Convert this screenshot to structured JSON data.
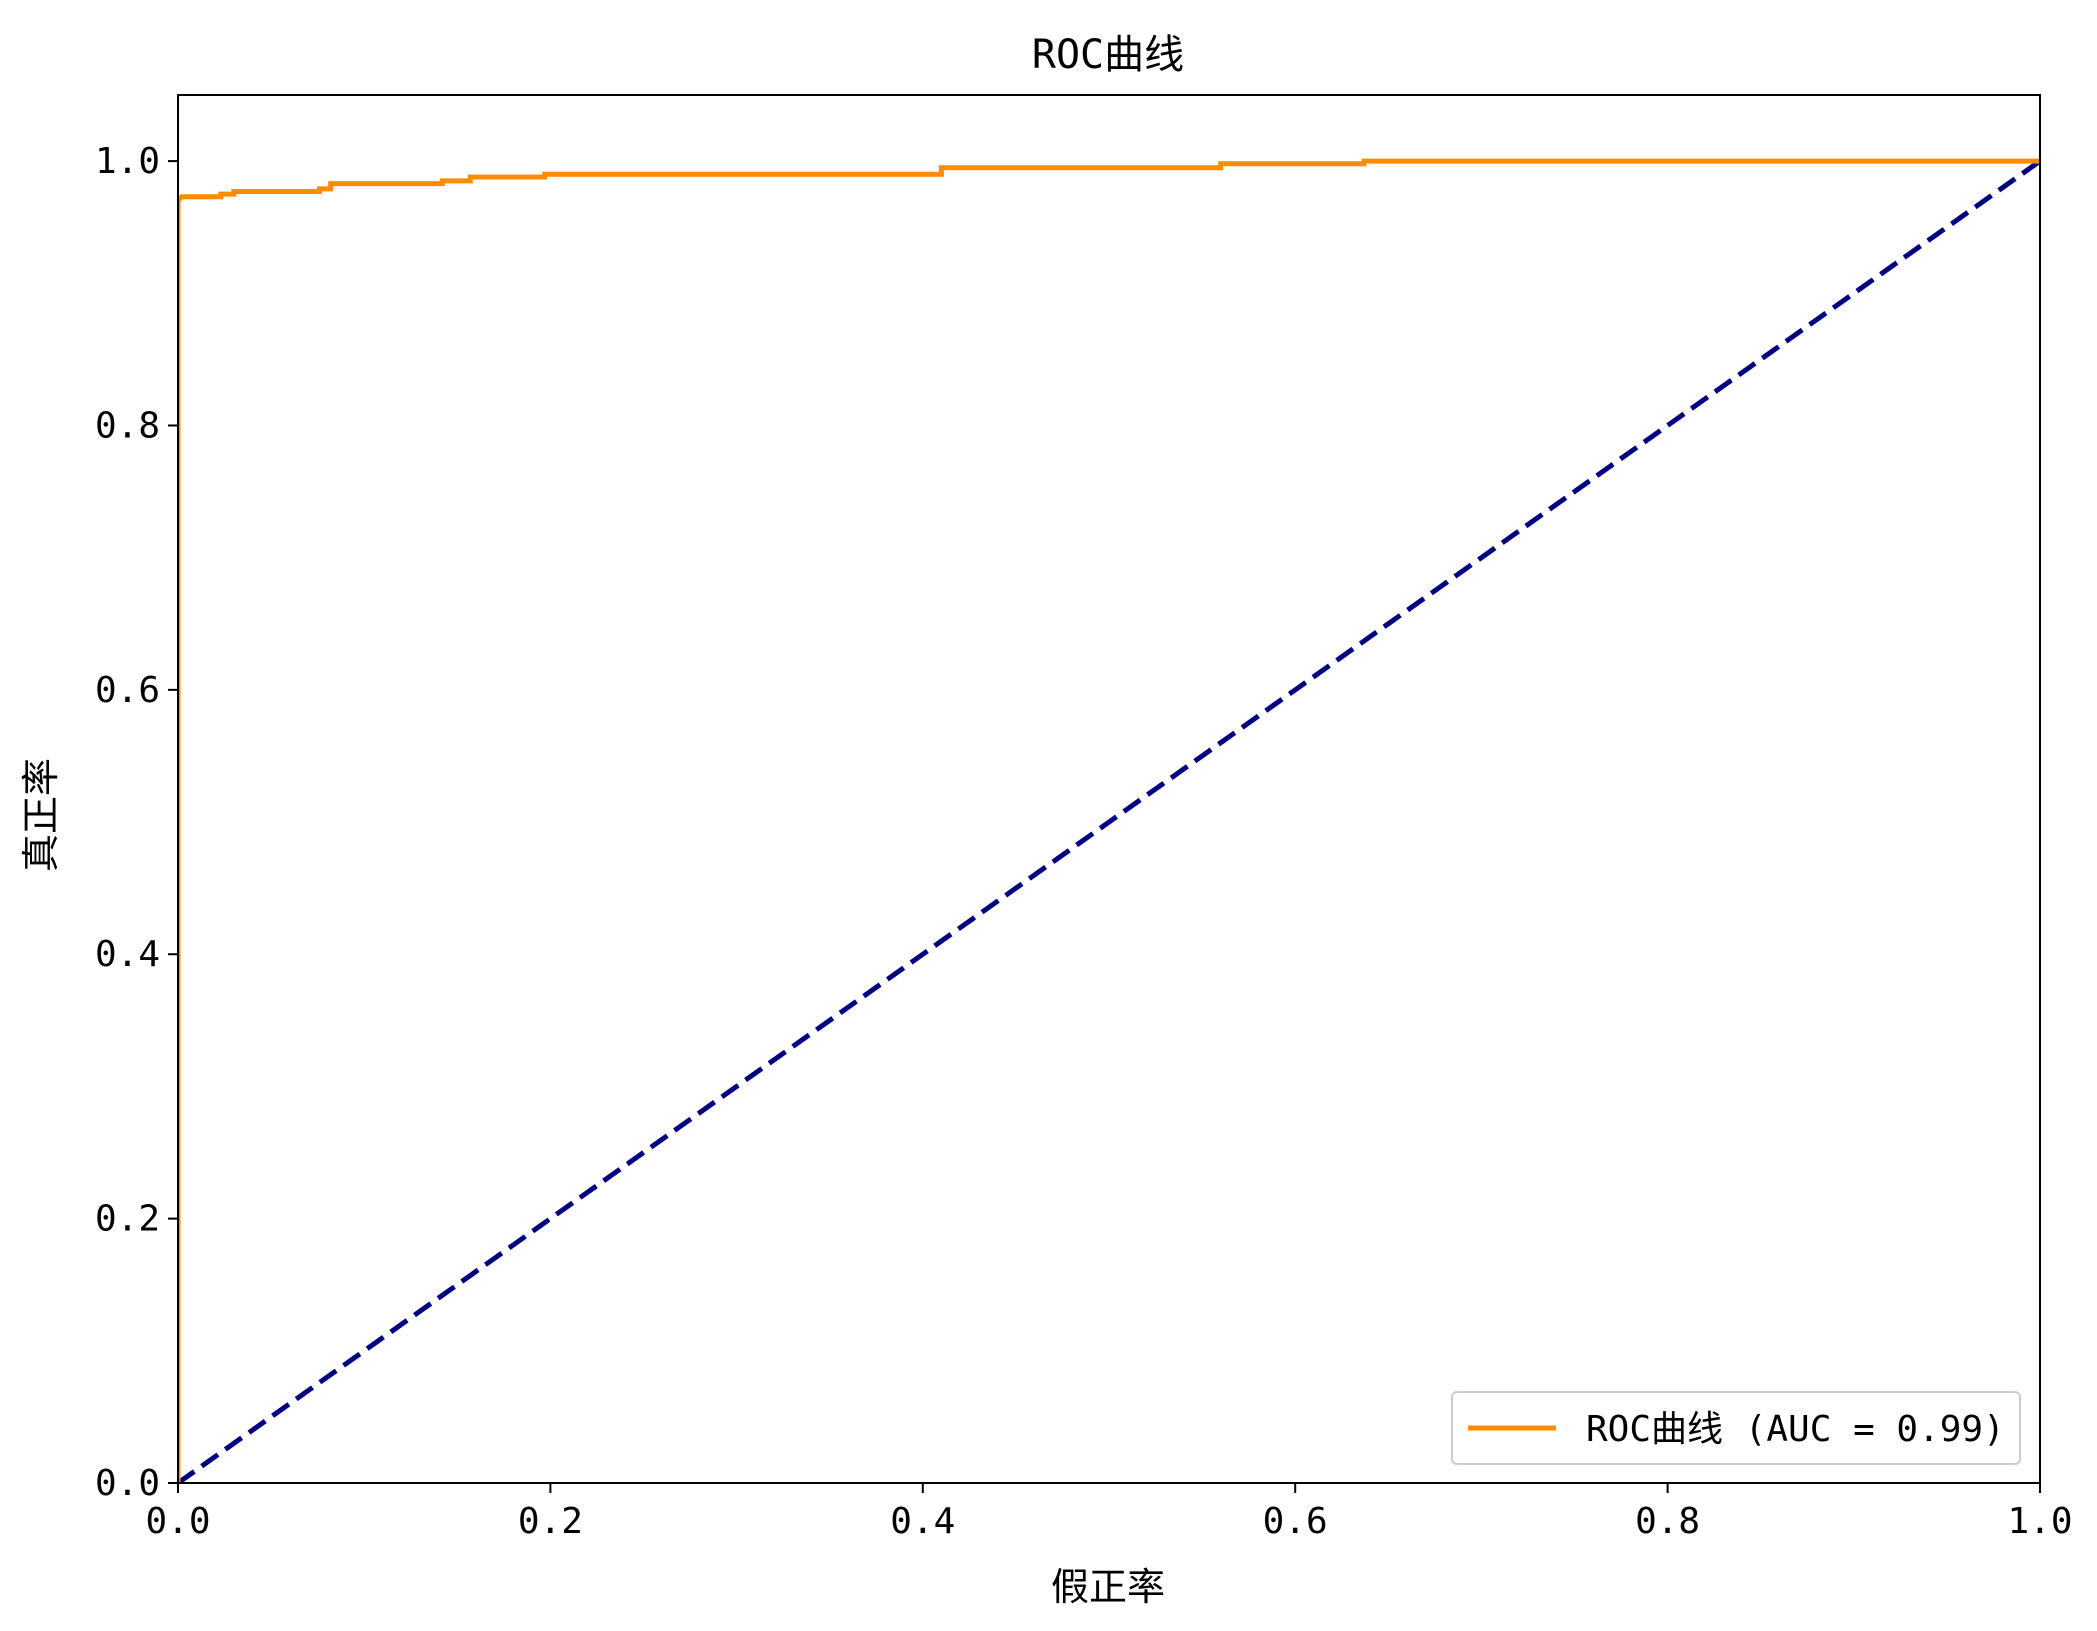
{
  "chart_data": {
    "type": "line",
    "title": "ROC曲线",
    "xlabel": "假正率",
    "ylabel": "真正率",
    "xlim": [
      0.0,
      1.0
    ],
    "ylim": [
      0.0,
      1.05
    ],
    "xticks": [
      "0.0",
      "0.2",
      "0.4",
      "0.6",
      "0.8",
      "1.0"
    ],
    "yticks": [
      "0.0",
      "0.2",
      "0.4",
      "0.6",
      "0.8",
      "1.0"
    ],
    "grid": false,
    "legend_position": "lower-right",
    "series": [
      {
        "name": "ROC曲线 (AUC = 0.99)",
        "color": "#ff8c00",
        "style": "solid",
        "points": [
          [
            0.0,
            0.0
          ],
          [
            0.0,
            0.97
          ],
          [
            0.002,
            0.973
          ],
          [
            0.023,
            0.973
          ],
          [
            0.023,
            0.975
          ],
          [
            0.03,
            0.975
          ],
          [
            0.03,
            0.977
          ],
          [
            0.076,
            0.977
          ],
          [
            0.076,
            0.979
          ],
          [
            0.082,
            0.979
          ],
          [
            0.082,
            0.983
          ],
          [
            0.142,
            0.983
          ],
          [
            0.142,
            0.985
          ],
          [
            0.157,
            0.985
          ],
          [
            0.157,
            0.988
          ],
          [
            0.197,
            0.988
          ],
          [
            0.197,
            0.99
          ],
          [
            0.41,
            0.99
          ],
          [
            0.41,
            0.995
          ],
          [
            0.56,
            0.995
          ],
          [
            0.56,
            0.998
          ],
          [
            0.637,
            0.998
          ],
          [
            0.637,
            1.0
          ],
          [
            1.0,
            1.0
          ]
        ]
      },
      {
        "name": "",
        "color": "#000080",
        "style": "dashed",
        "points": [
          [
            0.0,
            0.0
          ],
          [
            1.0,
            1.0
          ]
        ]
      }
    ]
  }
}
